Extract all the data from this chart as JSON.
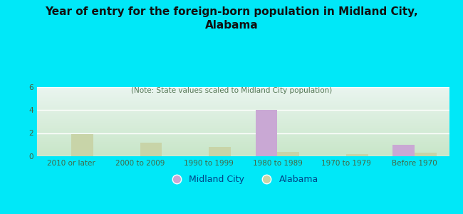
{
  "title": "Year of entry for the foreign-born population in Midland City,\nAlabama",
  "subtitle": "(Note: State values scaled to Midland City population)",
  "categories": [
    "2010 or later",
    "2000 to 2009",
    "1990 to 1999",
    "1980 to 1989",
    "1970 to 1979",
    "Before 1970"
  ],
  "midland_city": [
    0,
    0,
    0,
    4,
    0,
    1
  ],
  "alabama": [
    1.9,
    1.15,
    0.8,
    0.4,
    0.2,
    0.3
  ],
  "midland_city_color": "#c9a8d4",
  "alabama_color": "#c8d4a8",
  "background_outer": "#00e8f8",
  "background_inner_top": "#eaf5f0",
  "background_inner_bottom": "#cce8cc",
  "ylim": [
    0,
    6
  ],
  "yticks": [
    0,
    2,
    4,
    6
  ],
  "bar_width": 0.32,
  "title_fontsize": 11,
  "subtitle_fontsize": 7.5,
  "tick_fontsize": 7.5,
  "legend_fontsize": 9
}
